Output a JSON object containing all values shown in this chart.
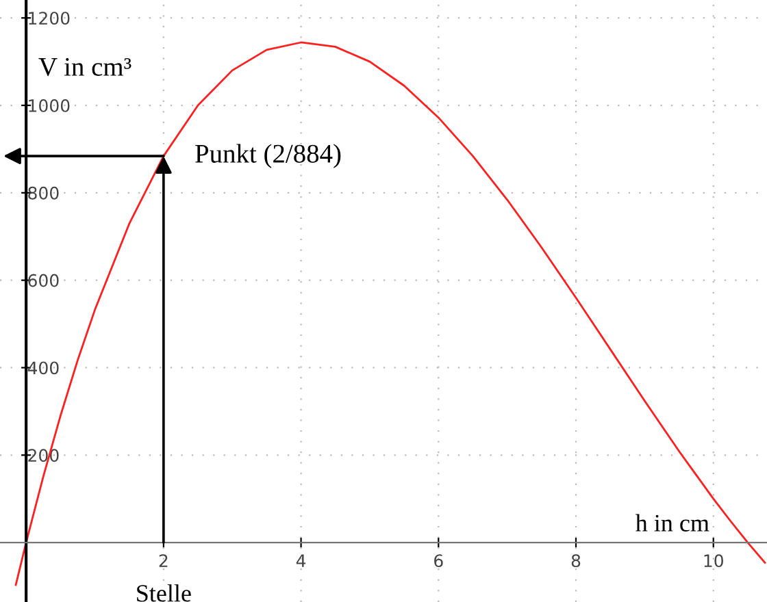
{
  "chart_data": {
    "type": "line",
    "xlabel": "h in cm",
    "ylabel": "V in cm³",
    "x": [
      -0.15,
      0,
      0.25,
      0.5,
      0.75,
      1,
      1.5,
      2,
      2.5,
      3,
      3.5,
      4,
      4.5,
      5,
      5.5,
      6,
      6.5,
      7,
      7.5,
      8,
      8.5,
      9,
      9.5,
      10,
      10.25,
      10.5,
      10.75
    ],
    "series": [
      {
        "color": "#ff2020",
        "values": [
          -97,
          0,
          151,
          290,
          417,
          532,
          729,
          884,
          1000,
          1080,
          1127,
          1144,
          1134,
          1100,
          1045,
          972,
          884,
          784,
          675,
          560,
          442,
          324,
          209,
          100,
          49,
          0,
          -46
        ]
      }
    ],
    "xlim": [
      -0.38,
      10.78
    ],
    "ylim": [
      -136,
      1241
    ],
    "xticks": [
      2,
      4,
      6,
      8,
      10
    ],
    "yticks": [
      200,
      400,
      600,
      800,
      1000,
      1200
    ],
    "grid": true,
    "marker": "none",
    "line_style": "solid",
    "annotations": [
      {
        "text": "Punkt (2/884)",
        "x": 2,
        "y": 884
      },
      "Stelle"
    ]
  }
}
